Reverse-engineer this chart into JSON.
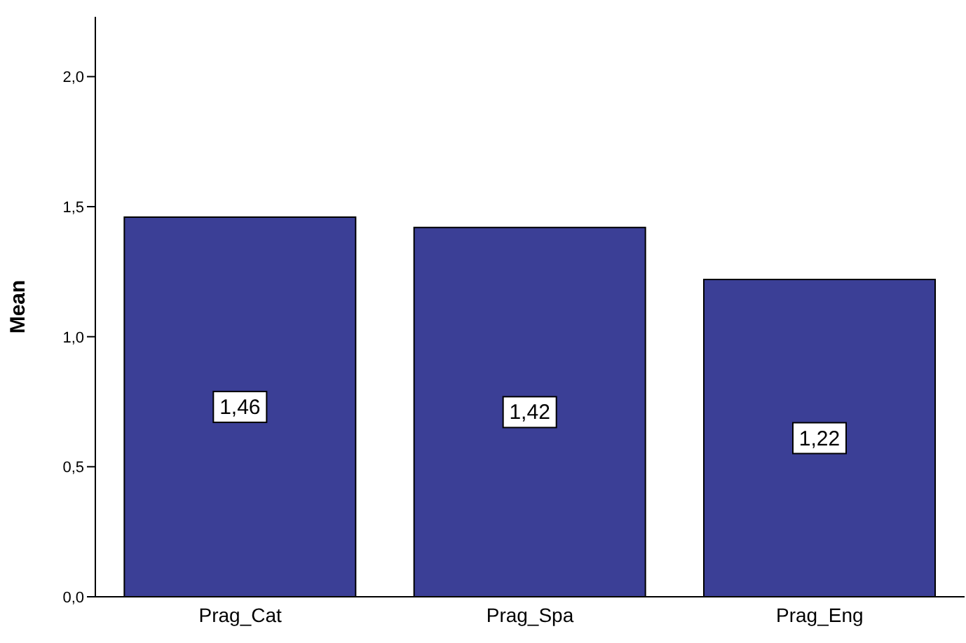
{
  "chart_data": {
    "type": "bar",
    "ylabel": "Mean",
    "categories": [
      "Prag_Cat",
      "Prag_Spa",
      "Prag_Eng"
    ],
    "values": [
      1.46,
      1.42,
      1.22
    ],
    "color": "#3b3f96",
    "value_labels": [
      "1,46",
      "1,42",
      "1,22"
    ],
    "ylim": [
      0,
      2.23
    ],
    "yticks": [
      {
        "value": 0,
        "label": "0,0"
      },
      {
        "value": 0.5,
        "label": "0,5"
      },
      {
        "value": 1,
        "label": "1,0"
      },
      {
        "value": 1.5,
        "label": "1,5"
      },
      {
        "value": 2,
        "label": "2,0"
      }
    ],
    "grid": false,
    "legend": false
  }
}
